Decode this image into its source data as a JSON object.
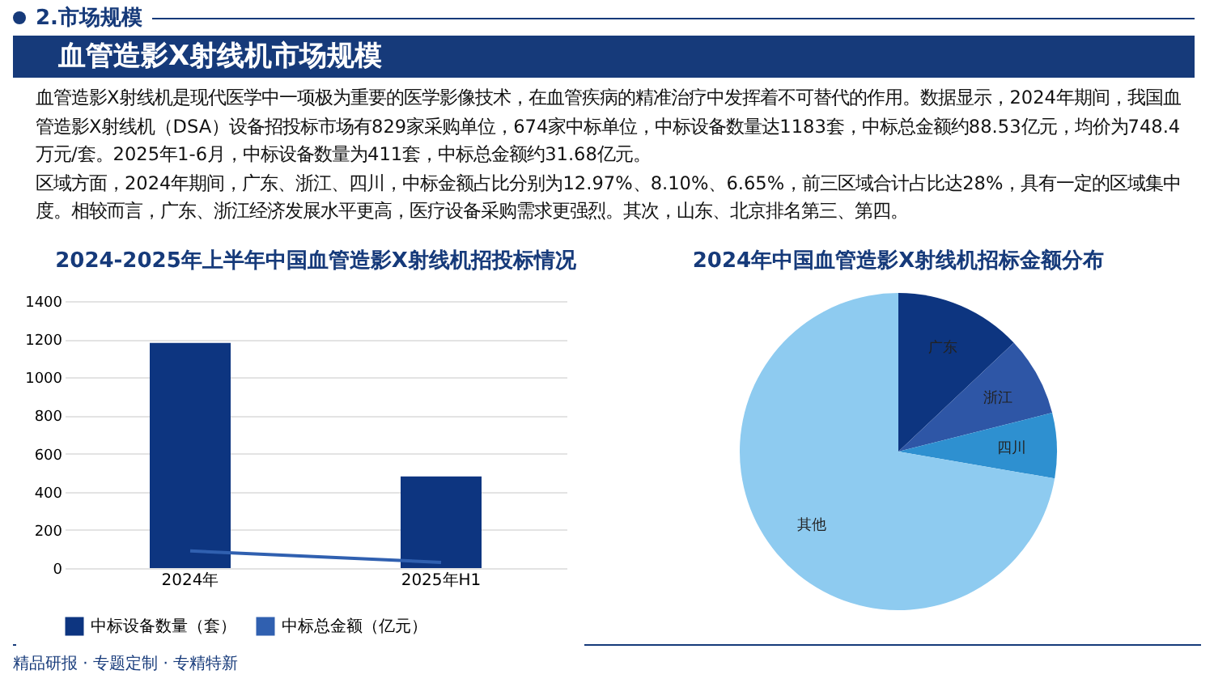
{
  "chart_data": [
    {
      "type": "other",
      "title": "血管造影X射线机市场规模",
      "subtitle": "2.市场规模",
      "annotations": [
        "血管造影X射线机是现代医学中一项极为重要的医学影像技术，在血管疾病的精准治疗中发挥着不可替代的作用。数据显示，2024年期间，我国血管造影X射线机（DSA）设备招投标市场有829家采购单位，674家中标单位，中标设备数量达1183套，中标总金额约88.53亿元，均价为748.4万元/套。2025年1-6月，中标设备数量为411套，中标总金额约31.68亿元。",
        "区域方面，2024年期间，广东、浙江、四川，中标金额占比分别为12.97%、8.10%、6.65%，前三区域合计占比达28%，具有一定的区域集中度。相较而言，广东、浙江经济发展水平更高，医疗设备采购需求更强烈。其次，山东、北京排名第三、第四。",
        "精品研报 · 专题定制 · 专精特新"
      ]
    },
    {
      "type": "bar",
      "title": "2024-2025年上半年中国血管造影X射线机招投标情况",
      "categories": [
        "2024年",
        "2025年H1"
      ],
      "series": [
        {
          "name": "中标设备数量（套）",
          "type": "bar",
          "color": "#0d3580",
          "values": [
            1180,
            480
          ]
        },
        {
          "name": "中标总金额（亿元）",
          "type": "line",
          "color": "#3060b0",
          "values": [
            90,
            30
          ]
        }
      ],
      "ylim": [
        0,
        1400
      ],
      "yticks": [
        0,
        200,
        400,
        600,
        800,
        1000,
        1200,
        1400
      ],
      "grid": "y",
      "legend": "bottom"
    },
    {
      "type": "pie",
      "title": "2024年中国血管造影X射线机招标金额分布",
      "categories": [
        "广东",
        "浙江",
        "四川",
        "其他"
      ],
      "values": [
        12.97,
        8.1,
        6.65,
        72.28
      ],
      "colors": [
        "#0d3580",
        "#2e56a6",
        "#2e90d0",
        "#8ecbf0"
      ],
      "legend": false
    }
  ]
}
